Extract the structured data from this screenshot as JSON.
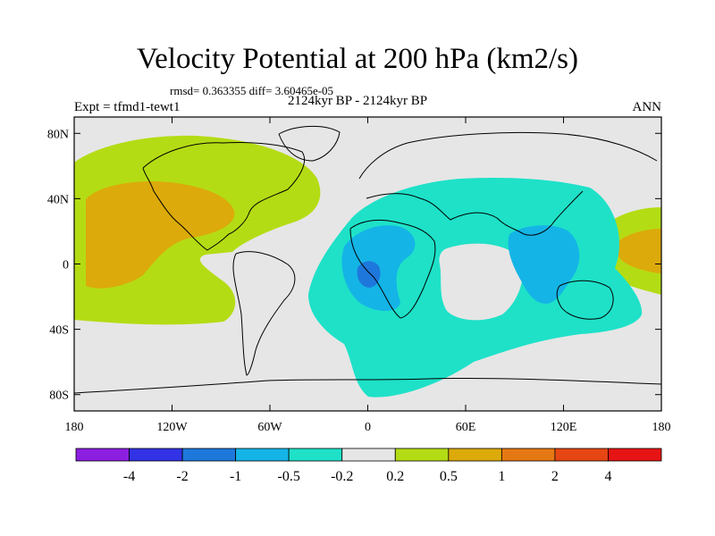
{
  "title": "Velocity Potential at 200 hPa (km2/s)",
  "stats": "rmsd= 0.363355 diff= 3.60465e-05",
  "subtitle": "2124kyr BP - 2124kyr BP",
  "left_label": "Expt = tfmd1-tewt1",
  "right_label": "ANN",
  "lat_ticks": [
    {
      "label": "80N",
      "lat": 80
    },
    {
      "label": "40N",
      "lat": 40
    },
    {
      "label": "0",
      "lat": 0
    },
    {
      "label": "40S",
      "lat": -40
    },
    {
      "label": "80S",
      "lat": -80
    }
  ],
  "lon_ticks": [
    {
      "label": "180",
      "lon": -180
    },
    {
      "label": "120W",
      "lon": -120
    },
    {
      "label": "60W",
      "lon": -60
    },
    {
      "label": "0",
      "lon": 0
    },
    {
      "label": "60E",
      "lon": 60
    },
    {
      "label": "120E",
      "lon": 120
    },
    {
      "label": "180",
      "lon": 180
    }
  ],
  "colorbar": {
    "colors": [
      "#8c1ee0",
      "#3232e6",
      "#1e78dc",
      "#14b4e6",
      "#1ee1c8",
      "#e6e6e6",
      "#b4dc14",
      "#dcaa0a",
      "#e67814",
      "#e64614",
      "#e61414"
    ],
    "labels": [
      "-4",
      "-2",
      "-1",
      "-0.5",
      "-0.2",
      "0.2",
      "0.5",
      "1",
      "2",
      "4"
    ]
  }
}
